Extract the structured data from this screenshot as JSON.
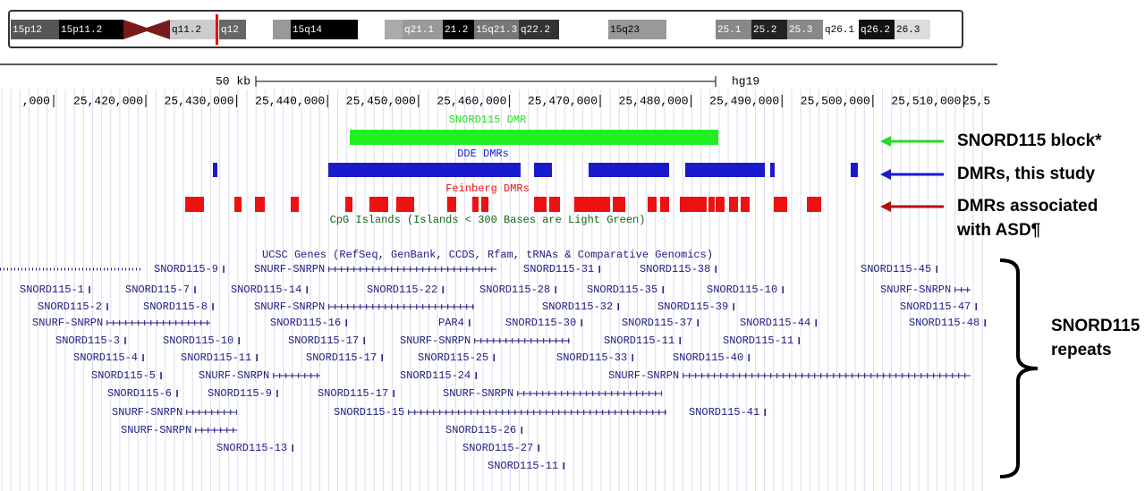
{
  "ideogram": {
    "bands": [
      "15p12",
      "15p11.2",
      "q11.2",
      "q12",
      "15q14",
      "q21.1",
      "21.2",
      "15q21.3",
      "q22.2",
      "15q23",
      "25.1",
      "25.2",
      "25.3",
      "q26.1",
      "q26.2",
      "26.3"
    ]
  },
  "scale": {
    "size_label": "50 kb",
    "assembly": "hg19"
  },
  "coordinates": {
    "left_fragment": ",000",
    "labels": [
      "25,420,000",
      "25,430,000",
      "25,440,000",
      "25,450,000",
      "25,460,000",
      "25,470,000",
      "25,480,000",
      "25,490,000",
      "25,500,000",
      "25,510,000"
    ],
    "right_fragment": "25,5"
  },
  "tracks": {
    "snord115_dmr": {
      "label": "SNORD115 DMR"
    },
    "dde_dmrs": {
      "label": "DDE DMRs"
    },
    "feinberg_dmrs": {
      "label": "Feinberg DMRs"
    },
    "cpg_islands": {
      "label": "CpG Islands (Islands < 300 Bases are Light Green)"
    },
    "ucsc_genes": {
      "label": "UCSC Genes (RefSeq, GenBank, CCDS, Rfam, tRNAs & Comparative Genomics)",
      "genes": [
        "SNORD115-9",
        "SNURF-SNRPN",
        "SNORD115-31",
        "SNORD115-38",
        "SNORD115-45",
        "SNORD115-1",
        "SNORD115-7",
        "SNORD115-14",
        "SNORD115-22",
        "SNORD115-28",
        "SNORD115-35",
        "SNORD115-10",
        "SNURF-SNRPN",
        "SNORD115-2",
        "SNORD115-8",
        "SNURF-SNRPN",
        "SNORD115-32",
        "SNORD115-39",
        "SNORD115-47",
        "SNURF-SNRPN",
        "SNORD115-16",
        "PAR4",
        "SNORD115-30",
        "SNORD115-37",
        "SNORD115-44",
        "SNORD115-48",
        "SNORD115-3",
        "SNORD115-10",
        "SNORD115-17",
        "SNURF-SNRPN",
        "SNORD115-11",
        "SNORD115-11",
        "SNORD115-4",
        "SNORD115-11",
        "SNORD115-17",
        "SNORD115-25",
        "SNORD115-33",
        "SNORD115-40",
        "SNORD115-5",
        "SNURF-SNRPN",
        "SNORD115-24",
        "SNURF-SNRPN",
        "SNORD115-6",
        "SNORD115-9",
        "SNORD115-17",
        "SNURF-SNRPN",
        "SNURF-SNRPN",
        "SNORD115-15",
        "SNORD115-41",
        "SNURF-SNRPN",
        "SNORD115-26",
        "SNORD115-13",
        "SNORD115-27",
        "SNORD115-11"
      ]
    }
  },
  "annotations": {
    "snord115_block": "SNORD115 block*",
    "dmrs_this_study": "DMRs, this study",
    "dmrs_asd": [
      "DMRs associated",
      "with ASD¶"
    ],
    "repeats": [
      "SNORD115",
      "repeats"
    ]
  }
}
